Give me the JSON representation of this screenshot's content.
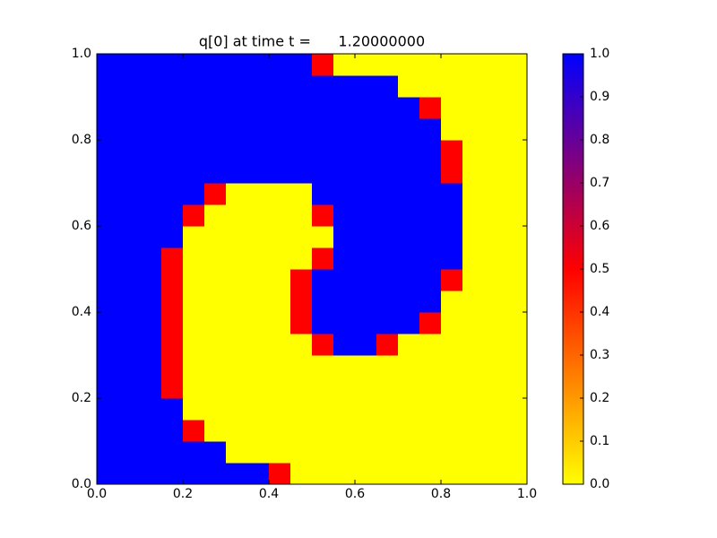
{
  "chart_data": {
    "type": "heatmap",
    "title": "q[0] at time t =      1.20000000",
    "xlim": [
      0,
      1
    ],
    "ylim": [
      0,
      1
    ],
    "xticks": [
      {
        "value": 0,
        "label": "0.0"
      },
      {
        "value": 0.2,
        "label": "0.2"
      },
      {
        "value": 0.4,
        "label": "0.4"
      },
      {
        "value": 0.6,
        "label": "0.6"
      },
      {
        "value": 0.8,
        "label": "0.8"
      },
      {
        "value": 1,
        "label": "1.0"
      }
    ],
    "yticks": [
      {
        "value": 0,
        "label": "0.0"
      },
      {
        "value": 0.2,
        "label": "0.2"
      },
      {
        "value": 0.4,
        "label": "0.4"
      },
      {
        "value": 0.6,
        "label": "0.6"
      },
      {
        "value": 0.8,
        "label": "0.8"
      },
      {
        "value": 1,
        "label": "1.0"
      }
    ],
    "clim": [
      0,
      1
    ],
    "cticks": [
      {
        "value": 0,
        "label": "0.0"
      },
      {
        "value": 0.1,
        "label": "0.1"
      },
      {
        "value": 0.2,
        "label": "0.2"
      },
      {
        "value": 0.3,
        "label": "0.3"
      },
      {
        "value": 0.4,
        "label": "0.4"
      },
      {
        "value": 0.5,
        "label": "0.5"
      },
      {
        "value": 0.6,
        "label": "0.6"
      },
      {
        "value": 0.7,
        "label": "0.7"
      },
      {
        "value": 0.8,
        "label": "0.8"
      },
      {
        "value": 0.9,
        "label": "0.9"
      },
      {
        "value": 1,
        "label": "1.0"
      }
    ],
    "colorscale": [
      [
        0,
        "#ffff00"
      ],
      [
        0.5,
        "#ff0000"
      ],
      [
        1,
        "#0000ff"
      ]
    ],
    "z": [
      [
        1,
        1,
        1,
        1,
        1,
        1,
        1,
        1,
        0.5,
        0,
        0,
        0,
        0,
        0,
        0,
        0,
        0,
        0,
        0,
        0
      ],
      [
        1,
        1,
        1,
        1,
        1,
        1,
        0,
        0,
        0,
        0,
        0,
        0,
        0,
        0,
        0,
        0,
        0,
        0,
        0,
        0
      ],
      [
        1,
        1,
        1,
        1,
        0.5,
        0,
        0,
        0,
        0,
        0,
        0,
        0,
        0,
        0,
        0,
        0,
        0,
        0,
        0,
        0
      ],
      [
        1,
        1,
        1,
        1,
        0,
        0,
        0,
        0,
        0,
        0,
        0,
        0,
        0,
        0,
        0,
        0,
        0,
        0,
        0,
        0
      ],
      [
        1,
        1,
        1,
        0.5,
        0,
        0,
        0,
        0,
        0,
        0,
        0,
        0,
        0,
        0,
        0,
        0,
        0,
        0,
        0,
        0
      ],
      [
        1,
        1,
        1,
        0.5,
        0,
        0,
        0,
        0,
        0,
        0,
        0,
        0,
        0,
        0,
        0,
        0,
        0,
        0,
        0,
        0
      ],
      [
        1,
        1,
        1,
        0.5,
        0,
        0,
        0,
        0,
        0,
        0,
        0.5,
        1,
        1,
        0.5,
        0,
        0,
        0,
        0,
        0,
        0
      ],
      [
        1,
        1,
        1,
        0.5,
        0,
        0,
        0,
        0,
        0,
        0.5,
        1,
        1,
        1,
        1,
        1,
        0.5,
        0,
        0,
        0,
        0
      ],
      [
        1,
        1,
        1,
        0.5,
        0,
        0,
        0,
        0,
        0,
        0.5,
        1,
        1,
        1,
        1,
        1,
        1,
        0,
        0,
        0,
        0
      ],
      [
        1,
        1,
        1,
        0.5,
        0,
        0,
        0,
        0,
        0,
        0.5,
        1,
        1,
        1,
        1,
        1,
        1,
        0.5,
        0,
        0,
        0
      ],
      [
        1,
        1,
        1,
        0.5,
        0,
        0,
        0,
        0,
        0,
        0,
        0.5,
        1,
        1,
        1,
        1,
        1,
        1,
        0,
        0,
        0
      ],
      [
        1,
        1,
        1,
        1,
        0,
        0,
        0,
        0,
        0,
        0,
        0,
        1,
        1,
        1,
        1,
        1,
        1,
        0,
        0,
        0
      ],
      [
        1,
        1,
        1,
        1,
        0.5,
        0,
        0,
        0,
        0,
        0,
        0.5,
        1,
        1,
        1,
        1,
        1,
        1,
        0,
        0,
        0
      ],
      [
        1,
        1,
        1,
        1,
        1,
        0.5,
        0,
        0,
        0,
        0,
        1,
        1,
        1,
        1,
        1,
        1,
        1,
        0,
        0,
        0
      ],
      [
        1,
        1,
        1,
        1,
        1,
        1,
        1,
        1,
        1,
        1,
        1,
        1,
        1,
        1,
        1,
        1,
        0.5,
        0,
        0,
        0
      ],
      [
        1,
        1,
        1,
        1,
        1,
        1,
        1,
        1,
        1,
        1,
        1,
        1,
        1,
        1,
        1,
        1,
        0.5,
        0,
        0,
        0
      ],
      [
        1,
        1,
        1,
        1,
        1,
        1,
        1,
        1,
        1,
        1,
        1,
        1,
        1,
        1,
        1,
        1,
        0,
        0,
        0,
        0
      ],
      [
        1,
        1,
        1,
        1,
        1,
        1,
        1,
        1,
        1,
        1,
        1,
        1,
        1,
        1,
        1,
        0.5,
        0,
        0,
        0,
        0
      ],
      [
        1,
        1,
        1,
        1,
        1,
        1,
        1,
        1,
        1,
        1,
        1,
        1,
        1,
        1,
        0,
        0,
        0,
        0,
        0,
        0
      ],
      [
        1,
        1,
        1,
        1,
        1,
        1,
        1,
        1,
        1,
        1,
        0.5,
        0,
        0,
        0,
        0,
        0,
        0,
        0,
        0,
        0
      ]
    ]
  }
}
